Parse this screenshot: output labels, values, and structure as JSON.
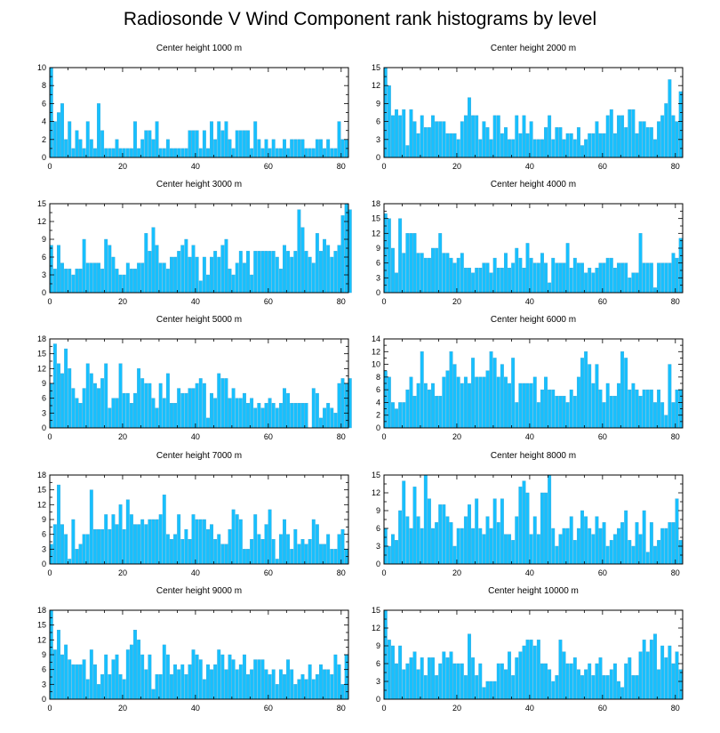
{
  "title": "Radiosonde V Wind Component rank histograms by level",
  "colors": {
    "bar": "#16c0ff",
    "bar_edge": "#3aa6d6",
    "axis": "#000000"
  },
  "chart_data": [
    {
      "type": "bar",
      "title": "Center height 1000 m",
      "ylim": [
        0,
        10
      ],
      "yticks": [
        0,
        2,
        4,
        6,
        8,
        10
      ],
      "xlim": [
        0,
        82
      ],
      "xticks": [
        0,
        20,
        40,
        60,
        80
      ],
      "values": [
        10,
        4,
        5,
        6,
        2,
        4,
        1,
        3,
        2,
        1,
        4,
        2,
        1,
        6,
        3,
        1,
        1,
        1,
        2,
        1,
        1,
        1,
        1,
        4,
        1,
        2,
        3,
        3,
        2,
        4,
        1,
        1,
        2,
        1,
        1,
        1,
        1,
        1,
        3,
        3,
        3,
        1,
        3,
        1,
        4,
        2,
        4,
        3,
        4,
        2,
        1,
        3,
        3,
        3,
        3,
        1,
        4,
        2,
        1,
        2,
        1,
        2,
        1,
        1,
        2,
        1,
        2,
        2,
        2,
        2,
        1,
        1,
        1,
        2,
        2,
        1,
        2,
        1,
        1,
        4,
        2,
        2
      ]
    },
    {
      "type": "bar",
      "title": "Center height 2000 m",
      "ylim": [
        0,
        15
      ],
      "yticks": [
        0,
        3,
        6,
        9,
        12,
        15
      ],
      "xlim": [
        0,
        82
      ],
      "xticks": [
        0,
        20,
        40,
        60,
        80
      ],
      "values": [
        15,
        12,
        7,
        8,
        7,
        8,
        2,
        8,
        6,
        4,
        7,
        5,
        5,
        7,
        6,
        6,
        6,
        4,
        4,
        4,
        3,
        6,
        7,
        10,
        7,
        7,
        3,
        6,
        5,
        3,
        7,
        7,
        4,
        5,
        3,
        3,
        7,
        4,
        7,
        4,
        6,
        3,
        3,
        3,
        5,
        7,
        3,
        5,
        5,
        3,
        4,
        4,
        3,
        5,
        2,
        3,
        4,
        4,
        6,
        4,
        4,
        7,
        8,
        4,
        7,
        7,
        5,
        8,
        8,
        4,
        6,
        6,
        5,
        5,
        3,
        6,
        7,
        9,
        13,
        7,
        6,
        11
      ]
    },
    {
      "type": "bar",
      "title": "Center height 3000 m",
      "ylim": [
        0,
        15
      ],
      "yticks": [
        0,
        3,
        6,
        9,
        12,
        15
      ],
      "xlim": [
        0,
        82
      ],
      "xticks": [
        0,
        20,
        40,
        60,
        80
      ],
      "values": [
        8,
        4,
        8,
        5,
        4,
        4,
        3,
        4,
        4,
        9,
        5,
        5,
        5,
        5,
        4,
        9,
        8,
        6,
        4,
        3,
        3,
        5,
        4,
        4,
        5,
        5,
        10,
        7,
        11,
        8,
        5,
        5,
        4,
        6,
        6,
        7,
        8,
        9,
        6,
        8,
        6,
        2,
        6,
        3,
        6,
        7,
        6,
        8,
        9,
        4,
        3,
        5,
        7,
        5,
        7,
        3,
        7,
        7,
        7,
        7,
        7,
        7,
        6,
        4,
        8,
        7,
        6,
        7,
        14,
        11,
        7,
        6,
        5,
        10,
        7,
        9,
        8,
        6,
        7,
        8,
        13,
        15,
        14
      ]
    },
    {
      "type": "bar",
      "title": "Center height 4000 m",
      "ylim": [
        0,
        18
      ],
      "yticks": [
        0,
        3,
        6,
        9,
        12,
        15,
        18
      ],
      "xlim": [
        0,
        82
      ],
      "xticks": [
        0,
        20,
        40,
        60,
        80
      ],
      "values": [
        16,
        15,
        9,
        4,
        15,
        8,
        12,
        12,
        12,
        8,
        8,
        7,
        7,
        9,
        9,
        12,
        8,
        8,
        7,
        6,
        7,
        8,
        5,
        5,
        4,
        5,
        5,
        6,
        6,
        4,
        7,
        5,
        5,
        8,
        5,
        6,
        9,
        7,
        5,
        10,
        7,
        6,
        6,
        8,
        6,
        2,
        7,
        6,
        6,
        6,
        10,
        5,
        7,
        6,
        6,
        4,
        5,
        4,
        5,
        6,
        6,
        7,
        7,
        5,
        6,
        6,
        6,
        3,
        4,
        4,
        12,
        6,
        6,
        6,
        1,
        6,
        6,
        6,
        6,
        8,
        7,
        11
      ]
    },
    {
      "type": "bar",
      "title": "Center height 5000 m",
      "ylim": [
        0,
        18
      ],
      "yticks": [
        0,
        3,
        6,
        9,
        12,
        15,
        18
      ],
      "xlim": [
        0,
        82
      ],
      "xticks": [
        0,
        20,
        40,
        60,
        80
      ],
      "values": [
        9,
        17,
        13,
        11,
        16,
        12,
        8,
        6,
        5,
        8,
        13,
        11,
        9,
        8,
        10,
        13,
        4,
        6,
        6,
        13,
        7,
        7,
        5,
        7,
        12,
        10,
        9,
        9,
        6,
        4,
        9,
        6,
        11,
        5,
        5,
        8,
        7,
        7,
        8,
        8,
        9,
        10,
        9,
        2,
        7,
        6,
        11,
        10,
        10,
        6,
        8,
        6,
        6,
        7,
        5,
        6,
        4,
        5,
        4,
        5,
        6,
        5,
        4,
        5,
        8,
        7,
        5,
        5,
        5,
        5,
        5,
        0,
        8,
        7,
        2,
        4,
        5,
        4,
        3,
        9,
        10,
        9,
        10
      ]
    },
    {
      "type": "bar",
      "title": "Center height 6000 m",
      "ylim": [
        0,
        14
      ],
      "yticks": [
        0,
        2,
        4,
        6,
        8,
        10,
        12,
        14
      ],
      "xlim": [
        0,
        82
      ],
      "xticks": [
        0,
        20,
        40,
        60,
        80
      ],
      "values": [
        9,
        8,
        4,
        3,
        4,
        4,
        6,
        8,
        5,
        7,
        12,
        7,
        6,
        7,
        5,
        5,
        8,
        9,
        12,
        10,
        8,
        7,
        8,
        7,
        11,
        8,
        8,
        8,
        9,
        12,
        11,
        8,
        10,
        8,
        7,
        11,
        4,
        7,
        7,
        7,
        7,
        8,
        4,
        6,
        8,
        6,
        6,
        5,
        5,
        5,
        4,
        6,
        5,
        8,
        11,
        12,
        10,
        7,
        10,
        6,
        4,
        7,
        5,
        5,
        7,
        12,
        11,
        6,
        7,
        6,
        5,
        6,
        6,
        6,
        4,
        6,
        4,
        2,
        10,
        4,
        6,
        6
      ]
    },
    {
      "type": "bar",
      "title": "Center height 7000 m",
      "ylim": [
        0,
        18
      ],
      "yticks": [
        0,
        3,
        6,
        9,
        12,
        15,
        18
      ],
      "xlim": [
        0,
        82
      ],
      "xticks": [
        0,
        20,
        40,
        60,
        80
      ],
      "values": [
        4,
        8,
        16,
        8,
        6,
        1,
        9,
        3,
        4,
        6,
        6,
        15,
        7,
        7,
        7,
        10,
        7,
        10,
        8,
        12,
        7,
        13,
        10,
        8,
        8,
        9,
        8,
        9,
        9,
        9,
        10,
        14,
        6,
        5,
        6,
        10,
        5,
        7,
        5,
        10,
        9,
        9,
        9,
        7,
        8,
        5,
        6,
        4,
        4,
        7,
        11,
        10,
        9,
        3,
        3,
        5,
        10,
        6,
        5,
        8,
        11,
        5,
        1,
        6,
        9,
        6,
        3,
        7,
        4,
        5,
        4,
        5,
        9,
        8,
        4,
        4,
        6,
        3,
        3,
        6,
        7,
        3
      ]
    },
    {
      "type": "bar",
      "title": "Center height 8000 m",
      "ylim": [
        0,
        15
      ],
      "yticks": [
        0,
        3,
        6,
        9,
        12,
        15
      ],
      "xlim": [
        0,
        82
      ],
      "xticks": [
        0,
        20,
        40,
        60,
        80
      ],
      "values": [
        6,
        3,
        5,
        4,
        9,
        14,
        8,
        6,
        13,
        8,
        6,
        15,
        11,
        6,
        7,
        10,
        10,
        8,
        7,
        3,
        6,
        6,
        8,
        10,
        6,
        11,
        6,
        5,
        8,
        6,
        11,
        7,
        11,
        5,
        5,
        4,
        8,
        13,
        14,
        12,
        5,
        8,
        5,
        12,
        12,
        15,
        6,
        3,
        5,
        6,
        6,
        8,
        4,
        6,
        9,
        8,
        6,
        5,
        8,
        6,
        7,
        3,
        4,
        5,
        6,
        7,
        9,
        4,
        3,
        7,
        5,
        9,
        2,
        7,
        3,
        4,
        6,
        6,
        7,
        7,
        11,
        4
      ]
    },
    {
      "type": "bar",
      "title": "Center height 9000 m",
      "ylim": [
        0,
        18
      ],
      "yticks": [
        0,
        3,
        6,
        9,
        12,
        15,
        18
      ],
      "xlim": [
        0,
        82
      ],
      "xticks": [
        0,
        20,
        40,
        60,
        80
      ],
      "values": [
        18,
        10,
        14,
        9,
        11,
        8,
        7,
        7,
        7,
        8,
        4,
        10,
        7,
        3,
        5,
        9,
        5,
        8,
        9,
        5,
        4,
        10,
        11,
        14,
        12,
        9,
        6,
        9,
        2,
        5,
        5,
        11,
        9,
        5,
        7,
        6,
        7,
        5,
        7,
        10,
        9,
        8,
        4,
        7,
        6,
        7,
        10,
        9,
        6,
        9,
        8,
        6,
        7,
        9,
        5,
        6,
        8,
        8,
        8,
        6,
        5,
        6,
        3,
        6,
        5,
        8,
        6,
        3,
        4,
        5,
        4,
        7,
        4,
        5,
        7,
        6,
        6,
        5,
        9,
        7,
        3,
        9
      ]
    },
    {
      "type": "bar",
      "title": "Center height 10000 m",
      "ylim": [
        0,
        15
      ],
      "yticks": [
        0,
        3,
        6,
        9,
        12,
        15
      ],
      "xlim": [
        0,
        82
      ],
      "xticks": [
        0,
        20,
        40,
        60,
        80
      ],
      "values": [
        15,
        10,
        9,
        6,
        9,
        5,
        6,
        7,
        8,
        5,
        7,
        4,
        7,
        7,
        4,
        6,
        8,
        7,
        8,
        6,
        6,
        6,
        4,
        11,
        7,
        4,
        6,
        2,
        3,
        3,
        3,
        6,
        6,
        5,
        8,
        4,
        7,
        8,
        9,
        10,
        10,
        9,
        10,
        6,
        6,
        5,
        3,
        4,
        10,
        8,
        6,
        6,
        7,
        5,
        4,
        5,
        6,
        4,
        6,
        7,
        4,
        4,
        5,
        6,
        3,
        2,
        6,
        7,
        4,
        4,
        8,
        10,
        8,
        10,
        11,
        5,
        9,
        7,
        9,
        6,
        8,
        5
      ]
    }
  ]
}
